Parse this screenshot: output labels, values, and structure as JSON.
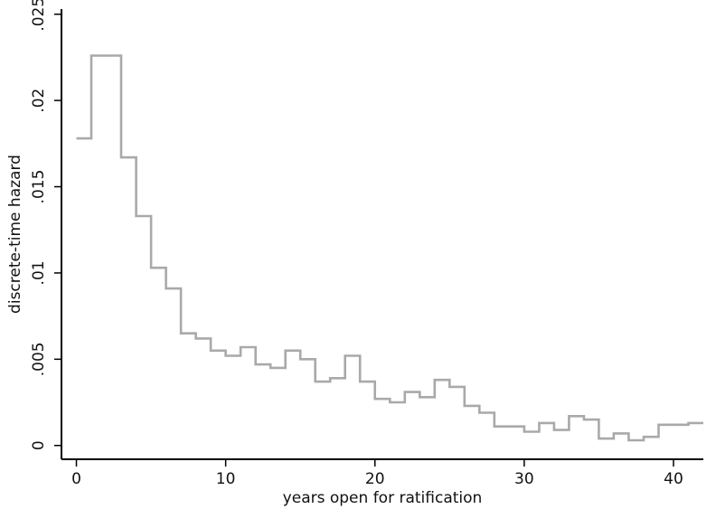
{
  "chart_data": {
    "type": "line",
    "step": true,
    "xlabel": "years open for ratification",
    "ylabel": "discrete-time hazard",
    "xlim": [
      -1,
      42
    ],
    "ylim": [
      -0.0008,
      0.0253
    ],
    "x_ticks": [
      0,
      10,
      20,
      30,
      40
    ],
    "x_tick_labels": [
      "0",
      "10",
      "20",
      "30",
      "40"
    ],
    "y_ticks": [
      0,
      0.005,
      0.01,
      0.015,
      0.02,
      0.025
    ],
    "y_tick_labels": [
      "0",
      ".005",
      ".01",
      ".015",
      ".02",
      ".025"
    ],
    "grid": false,
    "line_color": "#a9a9a9",
    "series": [
      {
        "x": [
          0,
          1,
          2,
          3,
          4,
          5,
          6,
          7,
          8,
          9,
          10,
          11,
          12,
          13,
          14,
          15,
          16,
          17,
          18,
          19,
          20,
          21,
          22,
          23,
          24,
          25,
          26,
          27,
          28,
          29,
          30,
          31,
          32,
          33,
          34,
          35,
          36,
          37,
          38,
          39,
          40,
          41
        ],
        "y": [
          0.0178,
          0.0226,
          0.0226,
          0.0167,
          0.0133,
          0.0103,
          0.0091,
          0.0065,
          0.0062,
          0.0055,
          0.0052,
          0.0057,
          0.0047,
          0.0045,
          0.0055,
          0.005,
          0.0037,
          0.0039,
          0.0052,
          0.0037,
          0.0027,
          0.0025,
          0.0031,
          0.0028,
          0.0038,
          0.0034,
          0.0023,
          0.0019,
          0.0011,
          0.0011,
          0.0008,
          0.0013,
          0.0009,
          0.0017,
          0.0015,
          0.0004,
          0.0007,
          0.0003,
          0.0005,
          0.0012,
          0.0012,
          0.0013
        ]
      }
    ]
  }
}
